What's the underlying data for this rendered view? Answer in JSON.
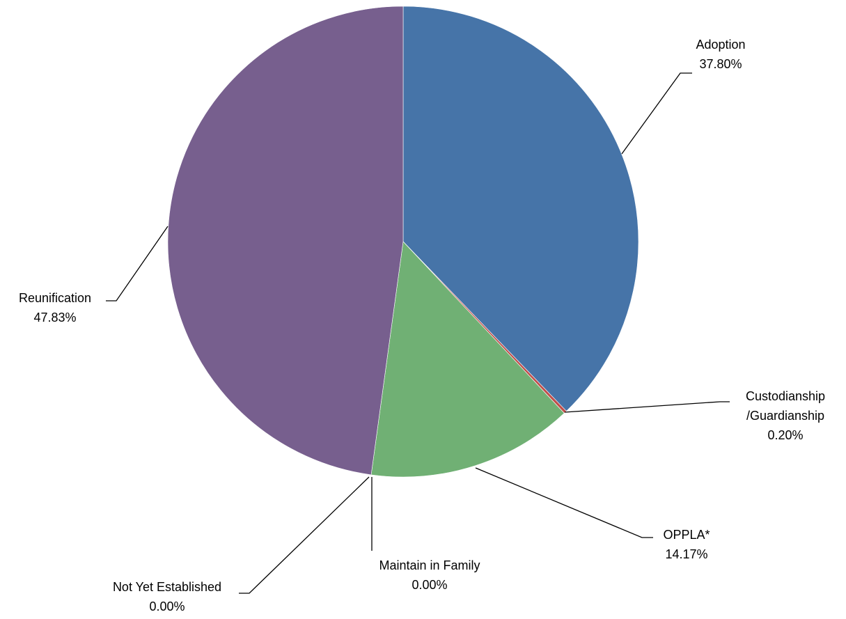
{
  "chart_data": {
    "type": "pie",
    "title": "",
    "start_angle_deg": 0,
    "direction": "clockwise",
    "slices": [
      {
        "name": "Adoption",
        "value_label": "37.80%",
        "value": 37.8,
        "color": "#4674A8"
      },
      {
        "name": "Custodianship /Guardianship",
        "value_label": "0.20%",
        "value": 0.2,
        "color": "#C0504D"
      },
      {
        "name": "OPPLA*",
        "value_label": "14.17%",
        "value": 14.17,
        "color": "#70B074"
      },
      {
        "name": "Maintain in Family",
        "value_label": "0.00%",
        "value": 0.0,
        "color": "#2F9FB5"
      },
      {
        "name": "Not Yet Established",
        "value_label": "0.00%",
        "value": 0.0,
        "color": "#F79646"
      },
      {
        "name": "Reunification",
        "value_label": "47.83%",
        "value": 47.83,
        "color": "#775F8E"
      }
    ],
    "labels": [
      {
        "lines": [
          "Adoption",
          "37.80%"
        ]
      },
      {
        "lines": [
          "Custodianship",
          "/Guardianship",
          "0.20%"
        ]
      },
      {
        "lines": [
          "OPPLA*",
          "14.17%"
        ]
      },
      {
        "lines": [
          "Maintain in Family",
          "0.00%"
        ]
      },
      {
        "lines": [
          "Not Yet Established",
          "0.00%"
        ]
      },
      {
        "lines": [
          "Reunification",
          "47.83%"
        ]
      }
    ],
    "legend": "none",
    "slice_border_color": "#ffffff"
  }
}
